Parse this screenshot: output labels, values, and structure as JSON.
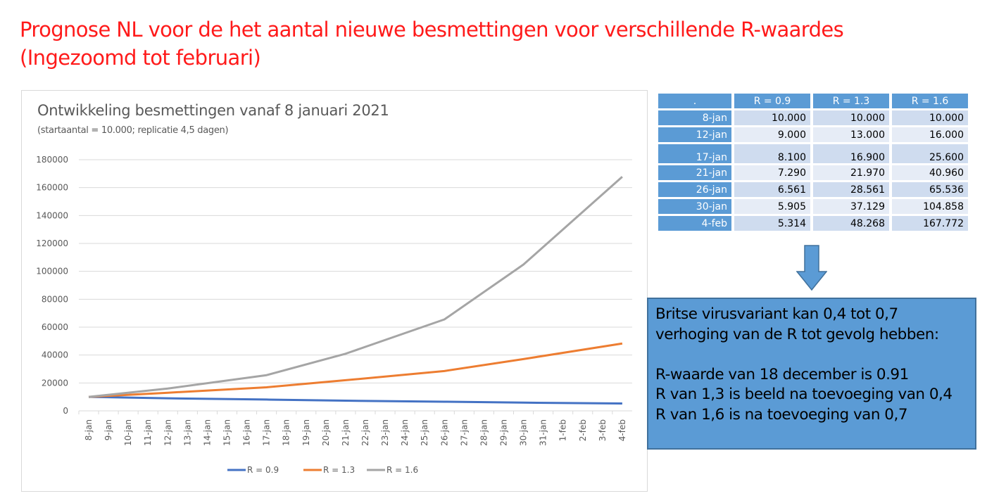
{
  "slide_title": [
    "Prognose NL voor de het aantal nieuwe besmettingen voor verschillende R-waardes",
    "(Ingezoomd tot februari)"
  ],
  "chart_data": {
    "type": "line",
    "title": "Ontwikkeling besmettingen vanaf 8 januari 2021",
    "subtitle": "(startaantal = 10.000; replicatie 4,5 dagen)",
    "xlabel": "",
    "ylabel": "",
    "ylim": [
      0,
      180000
    ],
    "yticks": [
      "0",
      "20000",
      "40000",
      "60000",
      "80000",
      "100000",
      "120000",
      "140000",
      "160000",
      "180000"
    ],
    "categories": [
      "8-jan",
      "9-jan",
      "10-jan",
      "11-jan",
      "12-jan",
      "13-jan",
      "14-jan",
      "15-jan",
      "16-jan",
      "17-jan",
      "18-jan",
      "19-jan",
      "20-jan",
      "21-jan",
      "22-jan",
      "23-jan",
      "24-jan",
      "25-jan",
      "26-jan",
      "27-jan",
      "28-jan",
      "29-jan",
      "30-jan",
      "31-jan",
      "1-feb",
      "2-feb",
      "3-feb",
      "4-feb"
    ],
    "grid": true,
    "legend": "bottom",
    "series": [
      {
        "name": "R = 0.9",
        "color": "#4472c4",
        "points": [
          [
            "8-jan",
            10000
          ],
          [
            "12-jan",
            9000
          ],
          [
            "17-jan",
            8100
          ],
          [
            "21-jan",
            7290
          ],
          [
            "26-jan",
            6561
          ],
          [
            "30-jan",
            5905
          ],
          [
            "4-feb",
            5314
          ]
        ]
      },
      {
        "name": "R = 1.3",
        "color": "#ed7d31",
        "points": [
          [
            "8-jan",
            10000
          ],
          [
            "12-jan",
            13000
          ],
          [
            "17-jan",
            16900
          ],
          [
            "21-jan",
            21970
          ],
          [
            "26-jan",
            28561
          ],
          [
            "30-jan",
            37129
          ],
          [
            "4-feb",
            48268
          ]
        ]
      },
      {
        "name": "R = 1.6",
        "color": "#a5a5a5",
        "points": [
          [
            "8-jan",
            10000
          ],
          [
            "12-jan",
            16000
          ],
          [
            "17-jan",
            25600
          ],
          [
            "21-jan",
            40960
          ],
          [
            "26-jan",
            65536
          ],
          [
            "30-jan",
            104858
          ],
          [
            "4-feb",
            167772
          ]
        ]
      }
    ]
  },
  "table": {
    "corner": ".",
    "headers": [
      "R = 0.9",
      "R = 1.3",
      "R = 1.6"
    ],
    "rows": [
      {
        "date": "8-jan",
        "values": [
          "10.000",
          "10.000",
          "10.000"
        ]
      },
      {
        "date": "12-jan",
        "values": [
          "9.000",
          "13.000",
          "16.000"
        ]
      },
      {
        "date": "17-jan",
        "values": [
          "8.100",
          "16.900",
          "25.600"
        ]
      },
      {
        "date": "21-jan",
        "values": [
          "7.290",
          "21.970",
          "40.960"
        ]
      },
      {
        "date": "26-jan",
        "values": [
          "6.561",
          "28.561",
          "65.536"
        ]
      },
      {
        "date": "30-jan",
        "values": [
          "5.905",
          "37.129",
          "104.858"
        ]
      },
      {
        "date": "4-feb",
        "values": [
          "5.314",
          "48.268",
          "167.772"
        ]
      }
    ]
  },
  "note": {
    "lines": [
      "Britse virusvariant kan 0,4 tot 0,7",
      "verhoging van de R tot gevolg hebben:",
      "",
      "R-waarde van 18 december is 0.91",
      "R van 1,3 is beeld na toevoeging van 0,4",
      "R van 1,6 is na toevoeging van 0,7"
    ]
  }
}
